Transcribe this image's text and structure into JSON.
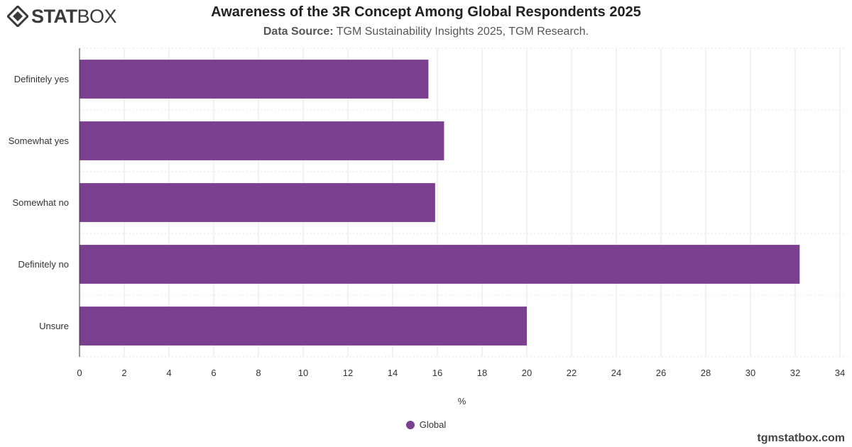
{
  "brand": {
    "logo_bold": "STAT",
    "logo_light": "BOX"
  },
  "header": {
    "title": "Awareness of the 3R Concept Among Global Respondents 2025",
    "source_label": "Data Source:",
    "source_text": "TGM Sustainability Insights 2025, TGM Research."
  },
  "footer": {
    "watermark": "tgmstatbox.com"
  },
  "colors": {
    "bar": "#7b3f8f",
    "grid": "#e6e6e6",
    "axis": "#333333"
  },
  "chart_data": {
    "type": "bar",
    "orientation": "horizontal",
    "title": "Awareness of the 3R Concept Among Global Respondents 2025",
    "categories": [
      "Definitely yes",
      "Somewhat yes",
      "Somewhat no",
      "Definitely no",
      "Unsure"
    ],
    "series": [
      {
        "name": "Global",
        "values": [
          15.6,
          16.3,
          15.9,
          32.2,
          20.0
        ]
      }
    ],
    "xlabel": "%",
    "ylabel": "",
    "xlim": [
      0,
      34
    ],
    "xticks": [
      0,
      2,
      4,
      6,
      8,
      10,
      12,
      14,
      16,
      18,
      20,
      22,
      24,
      26,
      28,
      30,
      32,
      34
    ],
    "grid": true,
    "legend": "bottom-center"
  }
}
